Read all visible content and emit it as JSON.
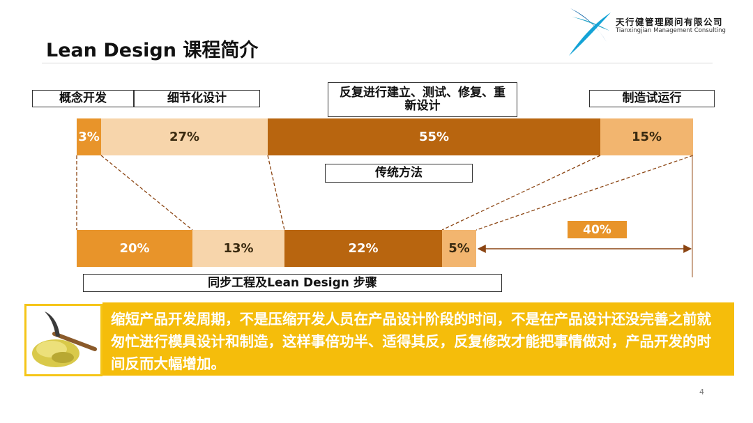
{
  "title": "Lean Design 课程简介",
  "logo": {
    "name_cn": "天行健管理顾问有限公司",
    "name_en": "Tianxingjian Management Consulting"
  },
  "traditional": {
    "labels": [
      "概念开发",
      "细节化设计",
      "反复进行建立、测试、修复、重新设计",
      "制造试运行"
    ],
    "percentages": [
      "3%",
      "27%",
      "55%",
      "15%"
    ],
    "caption": "传统方法"
  },
  "lean": {
    "percentages": [
      "20%",
      "13%",
      "22%",
      "5%"
    ],
    "saving": "40%",
    "caption": "同步工程及Lean Design 步骤"
  },
  "banner_text": "缩短产品开发周期，不是压缩开发人员在产品设计阶段的时间，不是在产品设计还没完善之前就匆忙进行模具设计和制造，这样事倍功半、适得其反，反复修改才能把事情做对，产品开发的时间反而大幅增加。",
  "page_number": "4",
  "colors": {
    "orange": "#e8942a",
    "light_peach": "#f7d5ab",
    "brown": "#b8650f",
    "tan": "#f2b56f",
    "banner": "#f5bd0b"
  }
}
